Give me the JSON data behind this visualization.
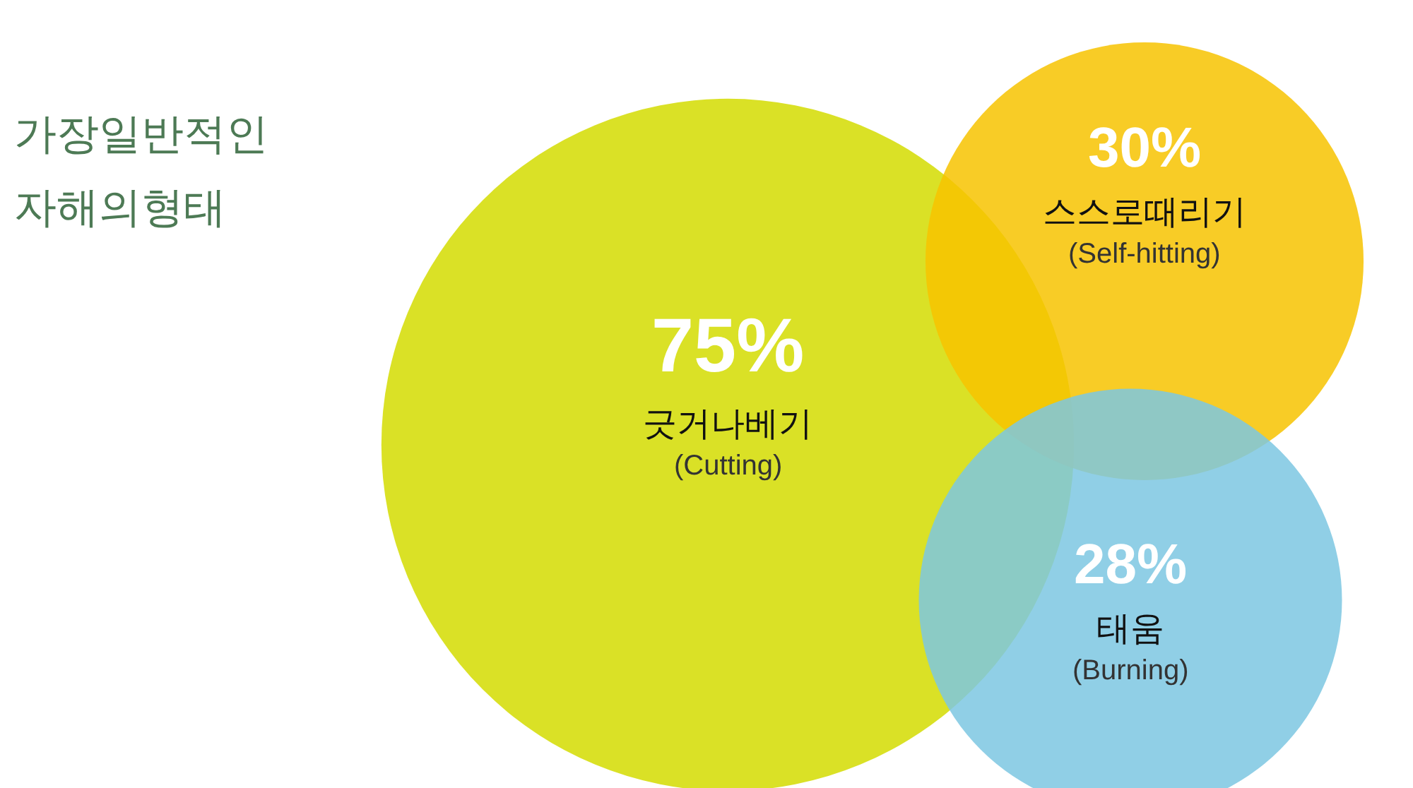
{
  "chart_data": {
    "type": "other",
    "title": "가장일반적인\n자해의형태",
    "categories": [
      "긋거나베기\n(Cutting)",
      "스스로때리기\n(Self-hitting)",
      "태움\n(Burning)"
    ],
    "values": [
      75,
      30,
      28
    ],
    "value_labels": [
      "75%",
      "30%",
      "28%"
    ],
    "colors": [
      "#d4dc00",
      "#f7c300",
      "#7cc7e2"
    ]
  }
}
